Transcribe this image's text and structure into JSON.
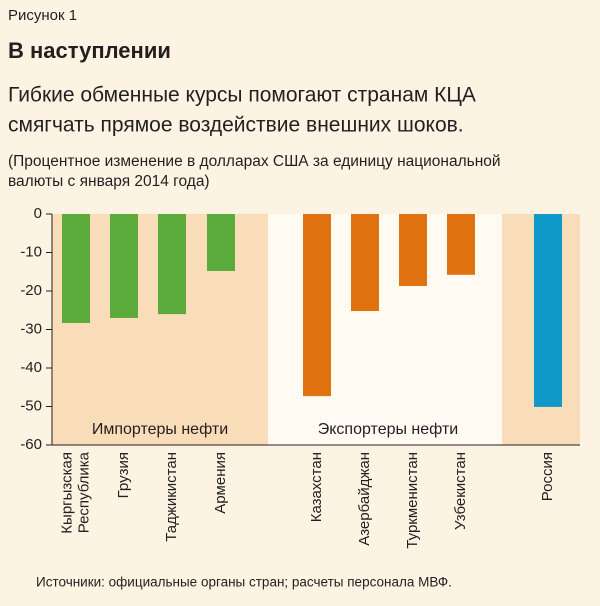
{
  "figure_label": "Рисунок 1",
  "chart_data": {
    "type": "bar",
    "title": "В наступлении",
    "subtitle": [
      "Гибкие обменные курсы помогают странам КЦА",
      "смягчать прямое воздействие внешних шоков."
    ],
    "note": [
      "(Процентное изменение в долларах США за единицу национальной",
      "валюты с января 2014 года)"
    ],
    "categories": [
      "Кыргызская\nРеспублика",
      "Грузия",
      "Таджикистан",
      "Армения",
      "Казахстан",
      "Азербайджан",
      "Туркменистан",
      "Узбекистан",
      "Россия"
    ],
    "values": [
      -28.3,
      -27,
      -26,
      -14.8,
      -47.3,
      -25.2,
      -18.7,
      -15.8,
      -50.1
    ],
    "colors": [
      "#5aab3c",
      "#5aab3c",
      "#5aab3c",
      "#5aab3c",
      "#e0730f",
      "#e0730f",
      "#e0730f",
      "#e0730f",
      "#0f99c9"
    ],
    "annotations": [
      "Импортеры нефти",
      "Экспортеры нефти"
    ],
    "ylim": [
      -60,
      0
    ],
    "yticks": [
      0,
      -10,
      -20,
      -30,
      -40,
      -50,
      -60
    ],
    "source": "Источники: официальные органы стран; расчеты персонала МВФ."
  }
}
